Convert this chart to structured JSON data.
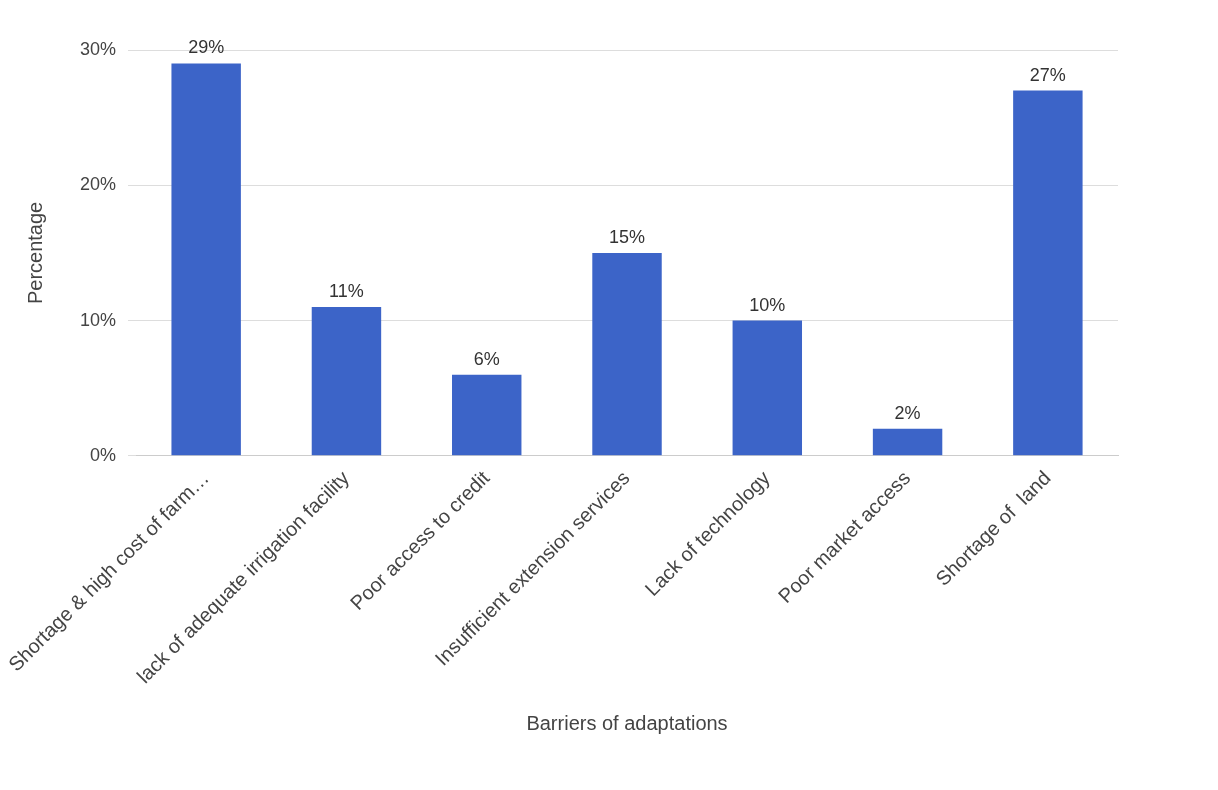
{
  "chart_data": {
    "type": "bar",
    "xlabel": "Barriers of adaptations",
    "ylabel": "Percentage",
    "categories": [
      "Shortage & high cost of farm…",
      "lack of adequate irrigation facility",
      "Poor access to credit",
      "Insufficient extension services",
      "Lack of technology",
      "Poor market access",
      "Shortage of  land"
    ],
    "values": [
      29,
      11,
      6,
      15,
      10,
      2,
      27
    ],
    "value_labels": [
      "29%",
      "11%",
      "6%",
      "15%",
      "10%",
      "2%",
      "27%"
    ],
    "color": "#3c64c8",
    "ylim": [
      0,
      30
    ],
    "yticks": [
      {
        "value": 0,
        "label": "0%"
      },
      {
        "value": 10,
        "label": "10%"
      },
      {
        "value": 20,
        "label": "20%"
      },
      {
        "value": 30,
        "label": "30%"
      }
    ],
    "grid": "y",
    "legend": false
  }
}
